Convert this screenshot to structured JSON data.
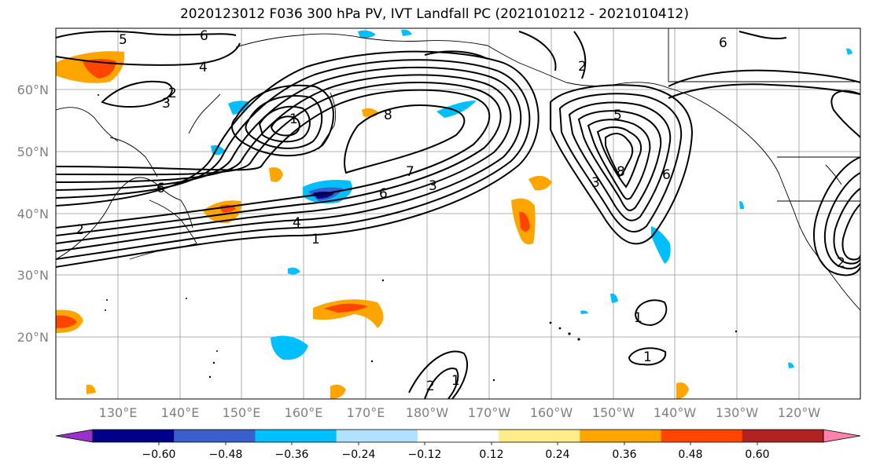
{
  "title": "2020123012 F036 300 hPa PV, IVT Landfall PC (2021010212 - 2021010412)",
  "map": {
    "lon_labels": [
      "130°E",
      "140°E",
      "150°E",
      "160°E",
      "170°E",
      "180°W",
      "170°W",
      "160°W",
      "150°W",
      "140°W",
      "130°W",
      "120°W"
    ],
    "lat_labels": [
      "60°N",
      "50°N",
      "40°N",
      "30°N",
      "20°N"
    ],
    "contour_labels": [
      "5",
      "6",
      "4",
      "2",
      "3",
      "1",
      "8",
      "7",
      "6",
      "3",
      "4",
      "1",
      "6",
      "2",
      "2",
      "5",
      "8",
      "3",
      "6",
      "2",
      "1",
      "1",
      "1",
      "2",
      "6"
    ]
  },
  "colorbar": {
    "ticks": [
      "−0.60",
      "−0.48",
      "−0.36",
      "−0.24",
      "−0.12",
      "0.12",
      "0.24",
      "0.36",
      "0.48",
      "0.60"
    ],
    "colors": [
      "#9932CC",
      "#00008B",
      "#3A5FCD",
      "#00BFFF",
      "#B0E2FF",
      "#FFFFFF",
      "#FFEC8B",
      "#FFA500",
      "#FF4500",
      "#B22222",
      "#FF82AB"
    ]
  }
}
